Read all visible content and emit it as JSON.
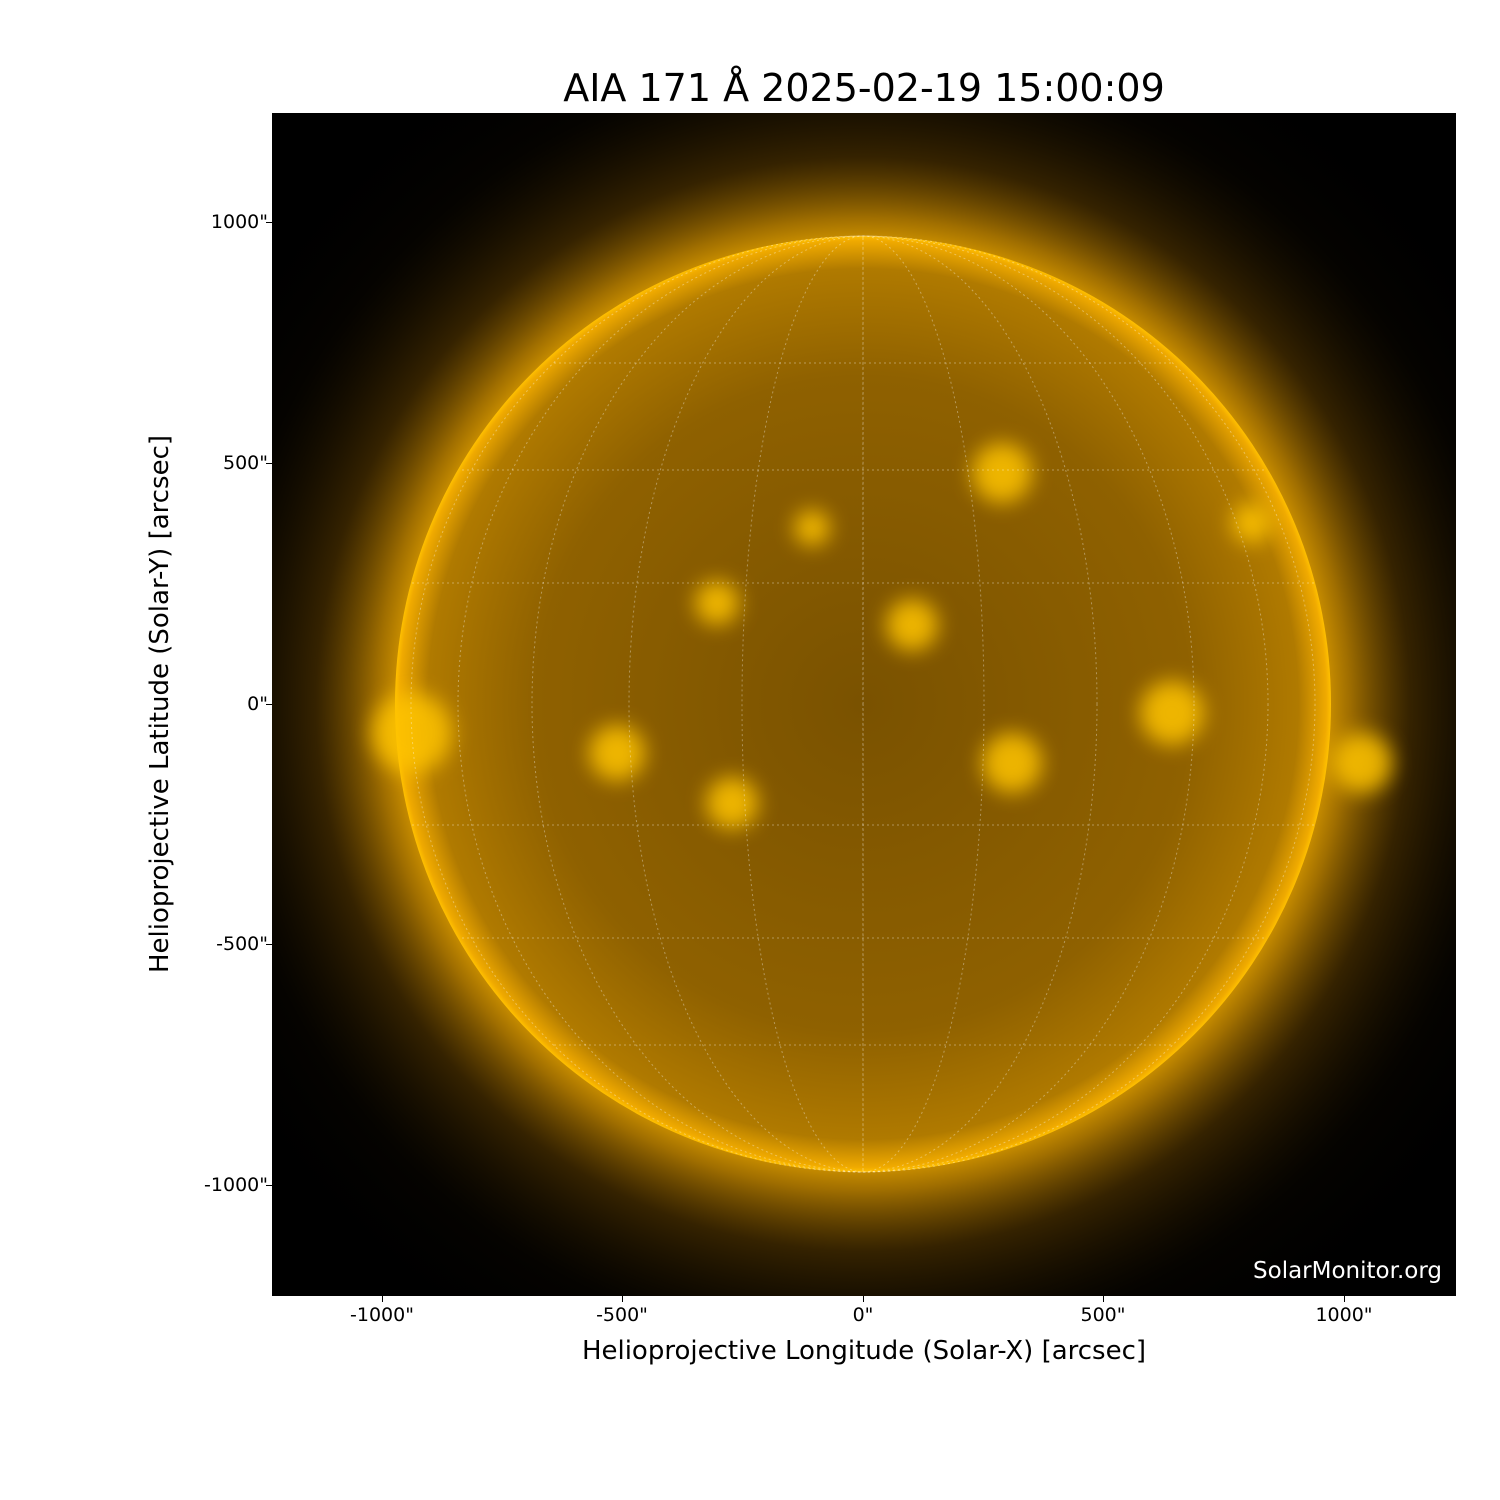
{
  "title": "AIA 171 Å 2025-02-19 15:00:09",
  "xlabel": "Helioprojective Longitude (Solar-X) [arcsec]",
  "ylabel": "Helioprojective Latitude (Solar-Y) [arcsec]",
  "x_ticks": [
    "-1000\"",
    "-500\"",
    "0\"",
    "500\"",
    "1000\""
  ],
  "y_ticks": [
    "1000\"",
    "500\"",
    "0\"",
    "-500\"",
    "-1000\""
  ],
  "watermark": "SolarMonitor.org",
  "colors": {
    "sun": "#f0a800",
    "corona": "#ffb300",
    "background": "#000000"
  },
  "image_description_colormap": "sdoaia171"
}
